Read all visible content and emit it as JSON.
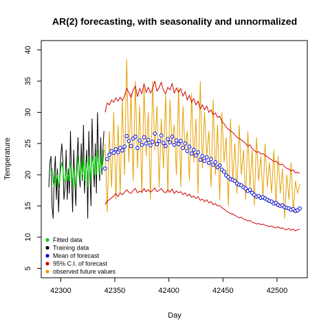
{
  "chart_data": {
    "type": "line",
    "title": "AR(2) forecasting, with seasonality and unnormalized",
    "xlabel": "Day",
    "ylabel": "Temperature",
    "xlim": [
      42282,
      42528
    ],
    "ylim": [
      3.5,
      41.5
    ],
    "xticks": [
      42300,
      42350,
      42400,
      42450,
      42500
    ],
    "yticks": [
      5,
      10,
      15,
      20,
      25,
      30,
      35,
      40
    ],
    "grid": false,
    "legend_position": "bottom-left",
    "colors": {
      "fitted": "#00cd00",
      "training": "#000000",
      "mean": "#0000cd",
      "ci": "#cd0000",
      "observed": "#e69f00"
    },
    "legend": [
      {
        "label": "Fitted data",
        "color": "#00cd00"
      },
      {
        "label": "Training data",
        "color": "#000000"
      },
      {
        "label": "Mean of forecast",
        "color": "#0000cd"
      },
      {
        "label": "95% C.I. of forecast",
        "color": "#cd0000"
      },
      {
        "label": "observed future values",
        "color": "#e69f00"
      }
    ],
    "series": [
      {
        "name": "Training data",
        "x": [
          42289,
          42290,
          42291,
          42292,
          42293,
          42294,
          42295,
          42296,
          42297,
          42298,
          42299,
          42300,
          42301,
          42302,
          42303,
          42304,
          42305,
          42306,
          42307,
          42308,
          42309,
          42310,
          42311,
          42312,
          42313,
          42314,
          42315,
          42316,
          42317,
          42318,
          42319,
          42320,
          42321,
          42322,
          42323,
          42324,
          42325,
          42326,
          42327,
          42328,
          42329,
          42330,
          42331,
          42332,
          42333,
          42334,
          42335,
          42336,
          42337,
          42338,
          42339,
          42340
        ],
        "y": [
          18,
          22,
          23,
          15,
          13,
          20,
          23,
          16,
          21,
          14,
          19,
          23,
          25,
          22,
          16,
          18,
          24,
          16,
          21,
          17,
          27,
          20,
          14,
          24,
          19,
          15,
          22,
          26,
          20,
          18,
          25,
          19,
          28,
          17,
          21,
          24,
          13,
          27,
          20,
          15,
          29,
          22,
          18,
          25,
          17,
          30,
          22,
          19,
          26,
          20,
          24,
          27
        ]
      },
      {
        "name": "Fitted data",
        "x": [
          42291,
          42292,
          42293,
          42294,
          42295,
          42296,
          42297,
          42298,
          42299,
          42300,
          42301,
          42302,
          42303,
          42304,
          42305,
          42306,
          42307,
          42308,
          42309,
          42310,
          42311,
          42312,
          42313,
          42314,
          42315,
          42316,
          42317,
          42318,
          42319,
          42320,
          42321,
          42322,
          42323,
          42324,
          42325,
          42326,
          42327,
          42328,
          42329,
          42330,
          42331,
          42332,
          42333,
          42334,
          42335,
          42336,
          42337,
          42338,
          42339,
          42340
        ],
        "y": [
          20,
          21,
          19,
          18,
          20,
          19,
          20,
          18,
          19,
          21,
          22,
          21,
          19,
          19,
          21,
          19,
          20,
          19,
          22,
          21,
          18,
          21,
          20,
          18,
          20,
          23,
          21,
          19,
          22,
          20,
          23,
          19,
          21,
          22,
          18,
          23,
          21,
          19,
          23,
          22,
          20,
          23,
          20,
          24,
          22,
          20,
          23,
          21,
          22,
          24
        ]
      },
      {
        "name": "Mean of forecast",
        "x": [
          42341,
          42343,
          42345,
          42347,
          42349,
          42351,
          42353,
          42355,
          42357,
          42359,
          42361,
          42363,
          42365,
          42367,
          42369,
          42371,
          42373,
          42375,
          42377,
          42379,
          42381,
          42383,
          42385,
          42387,
          42389,
          42391,
          42393,
          42395,
          42397,
          42399,
          42401,
          42403,
          42405,
          42407,
          42409,
          42411,
          42413,
          42415,
          42417,
          42419,
          42421,
          42423,
          42425,
          42427,
          42429,
          42431,
          42433,
          42435,
          42437,
          42439,
          42441,
          42443,
          42445,
          42447,
          42449,
          42451,
          42453,
          42455,
          42457,
          42459,
          42461,
          42463,
          42465,
          42467,
          42469,
          42471,
          42473,
          42475,
          42477,
          42479,
          42481,
          42483,
          42485,
          42487,
          42489,
          42491,
          42493,
          42495,
          42497,
          42499,
          42501,
          42503,
          42505,
          42507,
          42509,
          42511,
          42513,
          42515,
          42517,
          42519,
          42521
        ],
        "y": [
          21,
          22.5,
          23.2,
          23.8,
          23.5,
          24.1,
          23.6,
          24.3,
          23.9,
          24.5,
          26.2,
          25.4,
          24.6,
          25.8,
          26.1,
          24.3,
          25.5,
          24.8,
          26.0,
          25.0,
          25.6,
          24.7,
          25.3,
          26.6,
          24.9,
          25.4,
          26.3,
          25.1,
          24.6,
          25.7,
          25.2,
          26.1,
          24.8,
          25.5,
          24.9,
          25.4,
          24.3,
          25.0,
          23.8,
          24.5,
          23.4,
          24.0,
          23.1,
          23.6,
          22.4,
          23.0,
          22.2,
          22.8,
          21.9,
          22.5,
          21.6,
          22.0,
          21.2,
          21.5,
          20.8,
          20.5,
          19.9,
          19.6,
          19.3,
          19.2,
          19.0,
          18.6,
          18.4,
          18.3,
          18.0,
          17.8,
          17.4,
          17.6,
          17.1,
          16.8,
          16.5,
          16.6,
          16.3,
          16.4,
          16.2,
          16.0,
          15.8,
          15.7,
          15.4,
          15.5,
          15.2,
          15.0,
          15.1,
          14.8,
          14.7,
          14.6,
          14.4,
          14.5,
          14.2,
          14.3,
          14.6
        ]
      },
      {
        "name": "95% C.I. of forecast upper",
        "x": [
          42341,
          42343,
          42345,
          42347,
          42349,
          42351,
          42353,
          42355,
          42357,
          42359,
          42361,
          42363,
          42365,
          42367,
          42369,
          42371,
          42373,
          42375,
          42377,
          42379,
          42381,
          42383,
          42385,
          42387,
          42389,
          42391,
          42393,
          42395,
          42397,
          42399,
          42401,
          42403,
          42405,
          42407,
          42409,
          42411,
          42413,
          42415,
          42417,
          42419,
          42421,
          42423,
          42425,
          42427,
          42429,
          42431,
          42433,
          42435,
          42437,
          42439,
          42441,
          42443,
          42445,
          42447,
          42449,
          42451,
          42453,
          42455,
          42457,
          42459,
          42461,
          42463,
          42465,
          42467,
          42469,
          42471,
          42473,
          42475,
          42477,
          42479,
          42481,
          42483,
          42485,
          42487,
          42489,
          42491,
          42493,
          42495,
          42497,
          42499,
          42501,
          42503,
          42505,
          42507,
          42509,
          42511,
          42513,
          42515,
          42517,
          42519,
          42521
        ],
        "y": [
          30,
          31.5,
          31.2,
          32,
          31.6,
          32.3,
          31.8,
          32.4,
          31.9,
          32.6,
          33.8,
          33.2,
          32.4,
          33.6,
          34.2,
          32.5,
          33.8,
          33.0,
          34.6,
          33.2,
          34.0,
          33.1,
          33.8,
          35.0,
          33.4,
          34.0,
          34.8,
          33.5,
          33.0,
          34.0,
          33.6,
          34.6,
          33.1,
          33.9,
          33.2,
          33.8,
          32.6,
          33.3,
          32.0,
          32.7,
          31.6,
          32.2,
          31.2,
          31.8,
          30.6,
          31.2,
          30.4,
          31.0,
          30.0,
          30.4,
          29.6,
          29.9,
          29.2,
          29.4,
          28.5,
          28.2,
          27.6,
          27.3,
          27.0,
          26.8,
          26.4,
          26.0,
          25.8,
          25.6,
          25.3,
          25.0,
          24.6,
          24.8,
          24.2,
          23.9,
          23.6,
          23.7,
          23.3,
          23.4,
          23.1,
          22.9,
          22.6,
          22.4,
          22.1,
          22.2,
          21.8,
          21.6,
          21.7,
          21.3,
          21.0,
          20.9,
          20.6,
          20.8,
          20.3,
          20.4,
          20.2
        ]
      },
      {
        "name": "95% C.I. of forecast lower",
        "x": [
          42341,
          42343,
          42345,
          42347,
          42349,
          42351,
          42353,
          42355,
          42357,
          42359,
          42361,
          42363,
          42365,
          42367,
          42369,
          42371,
          42373,
          42375,
          42377,
          42379,
          42381,
          42383,
          42385,
          42387,
          42389,
          42391,
          42393,
          42395,
          42397,
          42399,
          42401,
          42403,
          42405,
          42407,
          42409,
          42411,
          42413,
          42415,
          42417,
          42419,
          42421,
          42423,
          42425,
          42427,
          42429,
          42431,
          42433,
          42435,
          42437,
          42439,
          42441,
          42443,
          42445,
          42447,
          42449,
          42451,
          42453,
          42455,
          42457,
          42459,
          42461,
          42463,
          42465,
          42467,
          42469,
          42471,
          42473,
          42475,
          42477,
          42479,
          42481,
          42483,
          42485,
          42487,
          42489,
          42491,
          42493,
          42495,
          42497,
          42499,
          42501,
          42503,
          42505,
          42507,
          42509,
          42511,
          42513,
          42515,
          42517,
          42519,
          42521
        ],
        "y": [
          15.2,
          15.8,
          16.0,
          16.3,
          16.6,
          17.0,
          16.5,
          17.1,
          16.8,
          17.2,
          17.6,
          17.2,
          17.0,
          17.5,
          17.8,
          17.1,
          17.4,
          17.2,
          17.8,
          17.3,
          17.6,
          17.2,
          17.5,
          17.9,
          17.3,
          17.5,
          17.8,
          17.3,
          17.1,
          17.6,
          17.2,
          17.7,
          17.0,
          17.4,
          17.1,
          17.3,
          16.8,
          17.1,
          16.6,
          16.9,
          16.4,
          16.6,
          16.2,
          16.5,
          15.9,
          16.1,
          15.7,
          16.0,
          15.5,
          15.7,
          15.2,
          15.4,
          15.0,
          15.1,
          14.7,
          14.5,
          14.2,
          14.0,
          13.8,
          13.7,
          13.5,
          13.3,
          13.1,
          13.2,
          12.9,
          12.8,
          12.6,
          12.7,
          12.4,
          12.3,
          12.1,
          12.2,
          12.0,
          12.1,
          11.9,
          11.8,
          11.7,
          11.8,
          11.6,
          11.5,
          11.7,
          11.4,
          11.5,
          11.3,
          11.2,
          11.4,
          11.1,
          11.3,
          11.0,
          11.2,
          11.3
        ]
      },
      {
        "name": "observed future values",
        "x": [
          42341,
          42343,
          42345,
          42347,
          42349,
          42351,
          42353,
          42355,
          42357,
          42359,
          42361,
          42363,
          42365,
          42367,
          42369,
          42371,
          42373,
          42375,
          42377,
          42379,
          42381,
          42383,
          42385,
          42387,
          42389,
          42391,
          42393,
          42395,
          42397,
          42399,
          42401,
          42403,
          42405,
          42407,
          42409,
          42411,
          42413,
          42415,
          42417,
          42419,
          42421,
          42423,
          42425,
          42427,
          42429,
          42431,
          42433,
          42435,
          42437,
          42439,
          42441,
          42443,
          42445,
          42447,
          42449,
          42451,
          42453,
          42455,
          42457,
          42459,
          42461,
          42463,
          42465,
          42467,
          42469,
          42471,
          42473,
          42475,
          42477,
          42479,
          42481,
          42483,
          42485,
          42487,
          42489,
          42491,
          42493,
          42495,
          42497,
          42499,
          42501,
          42503,
          42505,
          42507,
          42509,
          42511,
          42513,
          42515,
          42517,
          42519,
          42521
        ],
        "y": [
          25,
          14,
          27,
          18,
          30,
          16,
          28,
          17,
          32,
          20,
          38.5,
          22,
          33,
          19,
          35,
          21,
          31,
          17,
          34,
          23,
          30,
          16,
          35,
          24,
          31,
          18,
          29,
          21,
          33,
          17,
          32,
          25,
          28,
          20,
          34,
          18,
          31,
          24,
          27,
          19,
          33,
          22,
          29,
          17,
          35,
          21,
          30,
          23,
          27,
          18,
          32,
          20,
          28,
          16,
          30,
          22,
          26,
          15,
          29,
          19,
          25,
          17,
          28,
          20,
          24,
          16,
          27,
          18,
          24,
          15,
          26,
          19,
          23,
          16,
          25,
          18,
          22,
          17,
          24,
          15,
          23,
          17,
          21,
          13,
          20,
          16,
          22,
          14,
          19,
          17,
          18.5
        ]
      }
    ]
  }
}
